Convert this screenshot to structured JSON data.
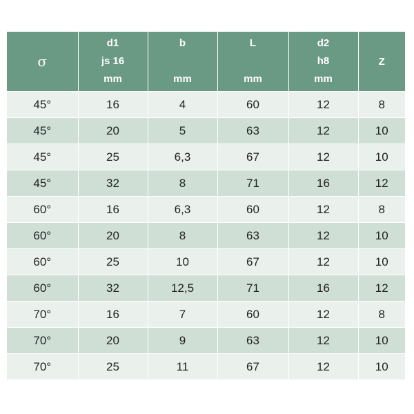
{
  "table": {
    "header": {
      "sigma": "σ",
      "d1": [
        "d1",
        "js 16",
        "mm"
      ],
      "b": [
        "b",
        "",
        "mm"
      ],
      "L": [
        "L",
        "",
        "mm"
      ],
      "d2": [
        "d2",
        "h8",
        "mm"
      ],
      "Z": "Z"
    },
    "rows": [
      [
        "45°",
        "16",
        "4",
        "60",
        "12",
        "8"
      ],
      [
        "45°",
        "20",
        "5",
        "63",
        "12",
        "10"
      ],
      [
        "45°",
        "25",
        "6,3",
        "67",
        "12",
        "10"
      ],
      [
        "45°",
        "32",
        "8",
        "71",
        "16",
        "12"
      ],
      [
        "60°",
        "16",
        "6,3",
        "60",
        "12",
        "8"
      ],
      [
        "60°",
        "20",
        "8",
        "63",
        "12",
        "10"
      ],
      [
        "60°",
        "25",
        "10",
        "67",
        "12",
        "10"
      ],
      [
        "60°",
        "32",
        "12,5",
        "71",
        "16",
        "12"
      ],
      [
        "70°",
        "16",
        "7",
        "60",
        "12",
        "8"
      ],
      [
        "70°",
        "20",
        "9",
        "63",
        "12",
        "10"
      ],
      [
        "70°",
        "25",
        "11",
        "67",
        "12",
        "10"
      ]
    ]
  },
  "colors": {
    "header_bg": "#6a9a84",
    "row_light": "#eaf1ed",
    "row_dark": "#cfdfd6"
  }
}
